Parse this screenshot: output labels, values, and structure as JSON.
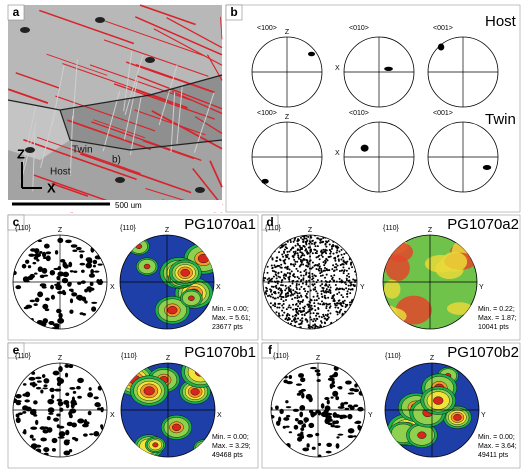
{
  "panel_a": {
    "label": "a",
    "twin": "Twin",
    "host": "Host",
    "inset": "b)",
    "axis_z": "Z",
    "axis_x": "X",
    "scale": "500 um"
  },
  "panel_b": {
    "label": "b",
    "rows": [
      {
        "name": "Host",
        "axis_z": "Z",
        "axis_x": "X",
        "figures": [
          "<100>",
          "<010>",
          "<001>"
        ]
      },
      {
        "name": "Twin",
        "axis_z": "Z",
        "axis_x": "X",
        "figures": [
          "<100>",
          "<010>",
          "<001>"
        ]
      }
    ]
  },
  "pole_panels": [
    {
      "label": "c",
      "title": "PG1070a1",
      "plane": "{110}",
      "plane2": "{110}",
      "axis_top": "Z",
      "axis_side": "X",
      "axis_top2": "Z",
      "axis_side2": "X",
      "min": "Min. = 0.00;",
      "max": "Max. = 5.61;",
      "pts": "23677 pts"
    },
    {
      "label": "d",
      "title": "PG1070a2",
      "plane": "{110}",
      "plane2": "{110}",
      "axis_top": "Z",
      "axis_side": "Y",
      "axis_top2": "Z",
      "axis_side2": "Y",
      "min": "Min. = 0.22;",
      "max": "Max. = 1.87;",
      "pts": "10041 pts"
    },
    {
      "label": "e",
      "title": "PG1070b1",
      "plane": "{110}",
      "plane2": "{110}",
      "axis_top": "Z",
      "axis_side": "X",
      "axis_top2": "Z",
      "axis_side2": "X",
      "min": "Min. = 0.00;",
      "max": "Max. = 3.29;",
      "pts": "49468 pts"
    },
    {
      "label": "f",
      "title": "PG1070b2",
      "plane": "{110}",
      "plane2": "{110}",
      "axis_top": "Z",
      "axis_side": "Y",
      "axis_top2": "Z",
      "axis_side2": "Y",
      "min": "Min. = 0.00;",
      "max": "Max. = 3.64;",
      "pts": "49411 pts"
    }
  ]
}
